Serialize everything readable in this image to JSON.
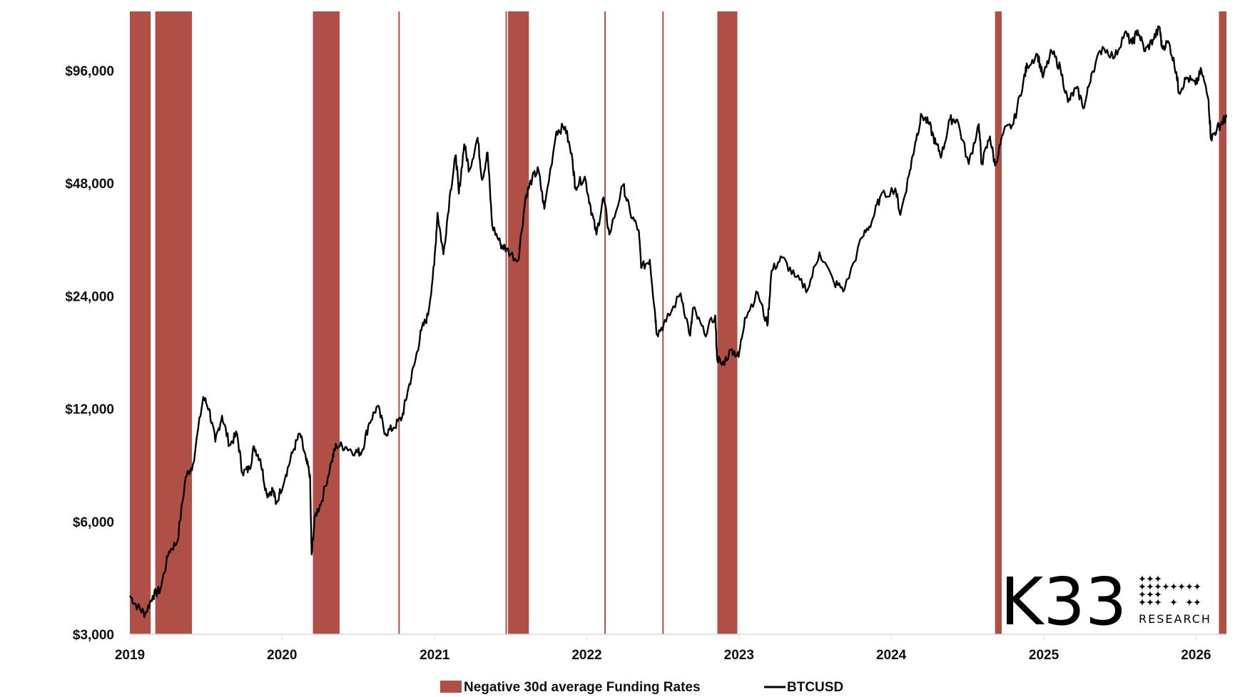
{
  "chart_data": {
    "type": "line",
    "title": "",
    "xlabel": "",
    "ylabel": "",
    "y_scale": "log",
    "ylim": [
      3000,
      138000
    ],
    "xlim": [
      "2019-01-01",
      "2026-03-15"
    ],
    "grid": false,
    "legend_placement": "bottom-center",
    "y_ticks": [
      {
        "value": 3000,
        "label": "$3,000"
      },
      {
        "value": 6000,
        "label": "$6,000"
      },
      {
        "value": 12000,
        "label": "$12,000"
      },
      {
        "value": 24000,
        "label": "$24,000"
      },
      {
        "value": 48000,
        "label": "$48,000"
      },
      {
        "value": 96000,
        "label": "$96,000"
      }
    ],
    "x_ticks": [
      {
        "value": "2019-01-01",
        "label": "2019"
      },
      {
        "value": "2020-01-01",
        "label": "2020"
      },
      {
        "value": "2021-01-01",
        "label": "2021"
      },
      {
        "value": "2022-01-01",
        "label": "2022"
      },
      {
        "value": "2023-01-01",
        "label": "2023"
      },
      {
        "value": "2024-01-01",
        "label": "2024"
      },
      {
        "value": "2025-01-01",
        "label": "2025"
      },
      {
        "value": "2026-01-01",
        "label": "2026"
      }
    ],
    "legend": [
      {
        "name": "Negative 30d average Funding Rates",
        "kind": "band",
        "color": "#b04f45"
      },
      {
        "name": "BTCUSD",
        "kind": "line",
        "color": "#000000"
      }
    ],
    "bands": {
      "name": "Negative 30d average Funding Rates",
      "color": "#b04f45",
      "ranges": [
        [
          "2019-01-01",
          "2019-02-20"
        ],
        [
          "2019-03-03",
          "2019-05-30"
        ],
        [
          "2020-03-15",
          "2020-05-18"
        ],
        [
          "2020-10-06",
          "2020-10-09"
        ],
        [
          "2021-06-20",
          "2021-06-23"
        ],
        [
          "2021-06-26",
          "2021-08-15"
        ],
        [
          "2022-02-12",
          "2022-02-15"
        ],
        [
          "2022-07-01",
          "2022-07-04"
        ],
        [
          "2022-11-10",
          "2022-12-28"
        ],
        [
          "2024-09-06",
          "2024-09-22"
        ],
        [
          "2026-02-25",
          "2026-03-15"
        ]
      ]
    },
    "series": [
      {
        "name": "BTCUSD",
        "color": "#000000",
        "points": [
          [
            "2019-01-01",
            3800
          ],
          [
            "2019-01-20",
            3550
          ],
          [
            "2019-02-07",
            3400
          ],
          [
            "2019-02-25",
            3800
          ],
          [
            "2019-03-15",
            3950
          ],
          [
            "2019-04-05",
            5000
          ],
          [
            "2019-04-25",
            5300
          ],
          [
            "2019-05-15",
            7900
          ],
          [
            "2019-06-01",
            8500
          ],
          [
            "2019-06-26",
            12900
          ],
          [
            "2019-07-10",
            12000
          ],
          [
            "2019-07-25",
            9800
          ],
          [
            "2019-08-10",
            11500
          ],
          [
            "2019-08-28",
            9600
          ],
          [
            "2019-09-15",
            10300
          ],
          [
            "2019-09-28",
            8100
          ],
          [
            "2019-10-15",
            8300
          ],
          [
            "2019-10-26",
            9500
          ],
          [
            "2019-11-10",
            8800
          ],
          [
            "2019-11-25",
            7100
          ],
          [
            "2019-12-10",
            7300
          ],
          [
            "2019-12-18",
            6700
          ],
          [
            "2020-01-10",
            8000
          ],
          [
            "2020-01-28",
            9300
          ],
          [
            "2020-02-13",
            10300
          ],
          [
            "2020-02-28",
            8700
          ],
          [
            "2020-03-08",
            8000
          ],
          [
            "2020-03-12",
            4900
          ],
          [
            "2020-03-20",
            6200
          ],
          [
            "2020-04-05",
            6800
          ],
          [
            "2020-04-29",
            8700
          ],
          [
            "2020-05-10",
            9600
          ],
          [
            "2020-06-01",
            9500
          ],
          [
            "2020-06-25",
            9200
          ],
          [
            "2020-07-10",
            9200
          ],
          [
            "2020-07-28",
            11000
          ],
          [
            "2020-08-17",
            12200
          ],
          [
            "2020-09-05",
            10300
          ],
          [
            "2020-09-25",
            10700
          ],
          [
            "2020-10-15",
            11400
          ],
          [
            "2020-10-28",
            13300
          ],
          [
            "2020-11-15",
            16000
          ],
          [
            "2020-11-30",
            19400
          ],
          [
            "2020-12-16",
            21300
          ],
          [
            "2020-12-31",
            29000
          ],
          [
            "2021-01-08",
            40000
          ],
          [
            "2021-01-22",
            31000
          ],
          [
            "2021-02-08",
            46000
          ],
          [
            "2021-02-21",
            57000
          ],
          [
            "2021-02-28",
            45000
          ],
          [
            "2021-03-13",
            61000
          ],
          [
            "2021-03-25",
            52000
          ],
          [
            "2021-04-14",
            63500
          ],
          [
            "2021-04-25",
            49000
          ],
          [
            "2021-05-08",
            58000
          ],
          [
            "2021-05-19",
            37000
          ],
          [
            "2021-06-08",
            33000
          ],
          [
            "2021-06-22",
            32000
          ],
          [
            "2021-07-20",
            29800
          ],
          [
            "2021-08-07",
            44000
          ],
          [
            "2021-08-23",
            49500
          ],
          [
            "2021-09-07",
            52000
          ],
          [
            "2021-09-21",
            41000
          ],
          [
            "2021-10-20",
            66000
          ],
          [
            "2021-11-10",
            68000
          ],
          [
            "2021-11-28",
            55000
          ],
          [
            "2021-12-04",
            47000
          ],
          [
            "2021-12-27",
            50000
          ],
          [
            "2022-01-10",
            41500
          ],
          [
            "2022-01-24",
            35000
          ],
          [
            "2022-02-10",
            44000
          ],
          [
            "2022-02-24",
            35000
          ],
          [
            "2022-03-29",
            47500
          ],
          [
            "2022-04-15",
            40000
          ],
          [
            "2022-05-05",
            36000
          ],
          [
            "2022-05-12",
            28500
          ],
          [
            "2022-06-01",
            30000
          ],
          [
            "2022-06-13",
            22000
          ],
          [
            "2022-06-18",
            19000
          ],
          [
            "2022-07-10",
            20500
          ],
          [
            "2022-08-14",
            24400
          ],
          [
            "2022-09-06",
            18800
          ],
          [
            "2022-09-13",
            22300
          ],
          [
            "2022-10-10",
            19000
          ],
          [
            "2022-11-05",
            21300
          ],
          [
            "2022-11-09",
            16500
          ],
          [
            "2022-11-21",
            15700
          ],
          [
            "2022-12-15",
            17300
          ],
          [
            "2022-12-31",
            16500
          ],
          [
            "2023-01-15",
            21000
          ],
          [
            "2023-02-15",
            24500
          ],
          [
            "2023-03-10",
            20000
          ],
          [
            "2023-03-20",
            28000
          ],
          [
            "2023-04-14",
            30400
          ],
          [
            "2023-05-15",
            27000
          ],
          [
            "2023-06-15",
            25000
          ],
          [
            "2023-07-13",
            31400
          ],
          [
            "2023-08-17",
            26000
          ],
          [
            "2023-09-11",
            25000
          ],
          [
            "2023-10-24",
            34500
          ],
          [
            "2023-11-15",
            37800
          ],
          [
            "2023-12-05",
            44000
          ],
          [
            "2024-01-11",
            46500
          ],
          [
            "2024-01-23",
            39500
          ],
          [
            "2024-02-15",
            52000
          ],
          [
            "2024-02-28",
            62000
          ],
          [
            "2024-03-14",
            73000
          ],
          [
            "2024-04-01",
            69000
          ],
          [
            "2024-04-17",
            61000
          ],
          [
            "2024-05-01",
            57000
          ],
          [
            "2024-05-21",
            71000
          ],
          [
            "2024-06-07",
            71000
          ],
          [
            "2024-07-05",
            54000
          ],
          [
            "2024-07-29",
            69000
          ],
          [
            "2024-08-05",
            54000
          ],
          [
            "2024-08-25",
            64000
          ],
          [
            "2024-09-06",
            53500
          ],
          [
            "2024-09-27",
            66000
          ],
          [
            "2024-10-20",
            69000
          ],
          [
            "2024-11-13",
            90000
          ],
          [
            "2024-11-22",
            99000
          ],
          [
            "2024-12-17",
            106000
          ],
          [
            "2024-12-30",
            92000
          ],
          [
            "2025-01-20",
            108000
          ],
          [
            "2025-02-10",
            97000
          ],
          [
            "2025-02-28",
            79000
          ],
          [
            "2025-03-20",
            86000
          ],
          [
            "2025-04-08",
            76500
          ],
          [
            "2025-04-25",
            94000
          ],
          [
            "2025-05-22",
            111000
          ],
          [
            "2025-06-20",
            104000
          ],
          [
            "2025-07-14",
            121000
          ],
          [
            "2025-08-01",
            113000
          ],
          [
            "2025-08-14",
            123000
          ],
          [
            "2025-09-01",
            108000
          ],
          [
            "2025-09-20",
            116000
          ],
          [
            "2025-10-06",
            125000
          ],
          [
            "2025-10-11",
            111000
          ],
          [
            "2025-10-28",
            114000
          ],
          [
            "2025-11-15",
            95000
          ],
          [
            "2025-11-21",
            84000
          ],
          [
            "2025-12-10",
            92000
          ],
          [
            "2025-12-31",
            88000
          ],
          [
            "2026-01-14",
            96000
          ],
          [
            "2026-01-31",
            80000
          ],
          [
            "2026-02-06",
            63000
          ],
          [
            "2026-02-20",
            67000
          ],
          [
            "2026-03-05",
            70000
          ],
          [
            "2026-03-15",
            72000
          ]
        ]
      }
    ]
  },
  "logo": {
    "brand": "K33",
    "sub": "RESEARCH"
  }
}
